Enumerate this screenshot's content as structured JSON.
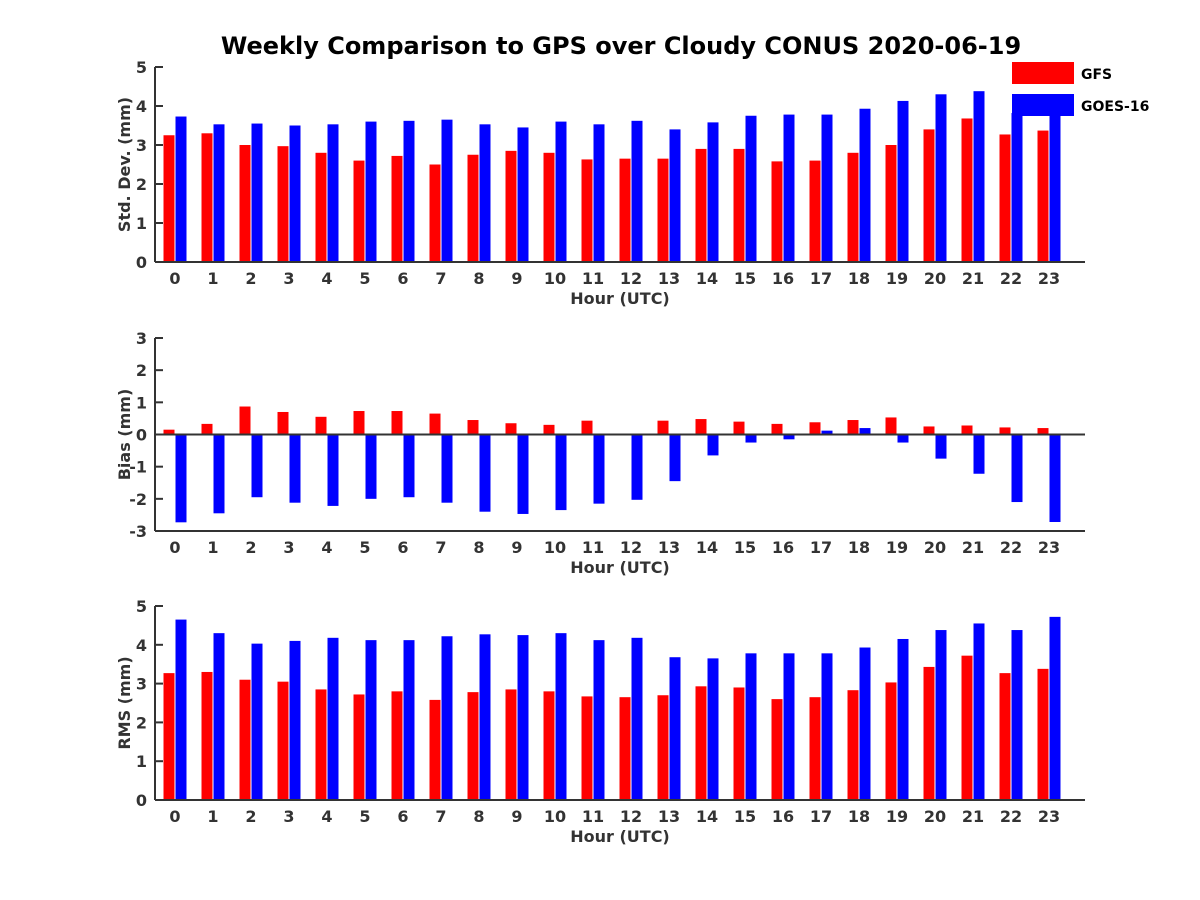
{
  "title": "Weekly Comparison to GPS over Cloudy CONUS 2020-06-19",
  "legend": [
    {
      "name": "GFS",
      "color": "#ff0000"
    },
    {
      "name": "GOES-16",
      "color": "#0000ff"
    }
  ],
  "chart_data": [
    {
      "type": "bar",
      "xlabel": "Hour (UTC)",
      "ylabel": "Std. Dev. (mm)",
      "ylim": [
        0,
        5
      ],
      "yticks": [
        0,
        1,
        2,
        3,
        4,
        5
      ],
      "categories": [
        "0",
        "1",
        "2",
        "3",
        "4",
        "5",
        "6",
        "7",
        "8",
        "9",
        "10",
        "11",
        "12",
        "13",
        "14",
        "15",
        "16",
        "17",
        "18",
        "19",
        "20",
        "21",
        "22",
        "23"
      ],
      "series": [
        {
          "name": "GFS",
          "color": "#ff0000",
          "values": [
            3.25,
            3.3,
            3.0,
            2.97,
            2.8,
            2.6,
            2.72,
            2.5,
            2.75,
            2.85,
            2.8,
            2.63,
            2.65,
            2.65,
            2.9,
            2.9,
            2.58,
            2.6,
            2.8,
            3.0,
            3.4,
            3.68,
            3.27,
            3.37
          ]
        },
        {
          "name": "GOES-16",
          "color": "#0000ff",
          "values": [
            3.73,
            3.53,
            3.55,
            3.5,
            3.53,
            3.6,
            3.62,
            3.65,
            3.53,
            3.45,
            3.6,
            3.53,
            3.62,
            3.4,
            3.58,
            3.75,
            3.78,
            3.78,
            3.93,
            4.13,
            4.3,
            4.38,
            3.82,
            3.85
          ]
        }
      ]
    },
    {
      "type": "bar",
      "xlabel": "Hour (UTC)",
      "ylabel": "Bias (mm)",
      "ylim": [
        -3,
        3
      ],
      "yticks": [
        -3,
        -2,
        -1,
        0,
        1,
        2,
        3
      ],
      "categories": [
        "0",
        "1",
        "2",
        "3",
        "4",
        "5",
        "6",
        "7",
        "8",
        "9",
        "10",
        "11",
        "12",
        "13",
        "14",
        "15",
        "16",
        "17",
        "18",
        "19",
        "20",
        "21",
        "22",
        "23"
      ],
      "series": [
        {
          "name": "GFS",
          "color": "#ff0000",
          "values": [
            0.15,
            0.33,
            0.87,
            0.7,
            0.55,
            0.73,
            0.73,
            0.65,
            0.45,
            0.35,
            0.3,
            0.43,
            0.03,
            0.43,
            0.48,
            0.4,
            0.33,
            0.38,
            0.45,
            0.53,
            0.25,
            0.28,
            0.22,
            0.2
          ]
        },
        {
          "name": "GOES-16",
          "color": "#0000ff",
          "values": [
            -2.73,
            -2.45,
            -1.95,
            -2.12,
            -2.22,
            -2.0,
            -1.95,
            -2.12,
            -2.4,
            -2.47,
            -2.35,
            -2.15,
            -2.03,
            -1.45,
            -0.65,
            -0.25,
            -0.15,
            0.12,
            0.2,
            -0.25,
            -0.75,
            -1.22,
            -2.1,
            -2.72
          ]
        }
      ]
    },
    {
      "type": "bar",
      "xlabel": "Hour (UTC)",
      "ylabel": "RMS (mm)",
      "ylim": [
        0,
        5
      ],
      "yticks": [
        0,
        1,
        2,
        3,
        4,
        5
      ],
      "categories": [
        "0",
        "1",
        "2",
        "3",
        "4",
        "5",
        "6",
        "7",
        "8",
        "9",
        "10",
        "11",
        "12",
        "13",
        "14",
        "15",
        "16",
        "17",
        "18",
        "19",
        "20",
        "21",
        "22",
        "23"
      ],
      "series": [
        {
          "name": "GFS",
          "color": "#ff0000",
          "values": [
            3.27,
            3.3,
            3.1,
            3.05,
            2.85,
            2.72,
            2.8,
            2.58,
            2.78,
            2.85,
            2.8,
            2.67,
            2.65,
            2.7,
            2.93,
            2.9,
            2.6,
            2.65,
            2.83,
            3.03,
            3.43,
            3.72,
            3.27,
            3.38
          ]
        },
        {
          "name": "GOES-16",
          "color": "#0000ff",
          "values": [
            4.65,
            4.3,
            4.03,
            4.1,
            4.18,
            4.12,
            4.12,
            4.22,
            4.27,
            4.25,
            4.3,
            4.12,
            4.18,
            3.68,
            3.65,
            3.78,
            3.78,
            3.78,
            3.93,
            4.15,
            4.38,
            4.55,
            4.38,
            4.72
          ]
        }
      ]
    }
  ]
}
